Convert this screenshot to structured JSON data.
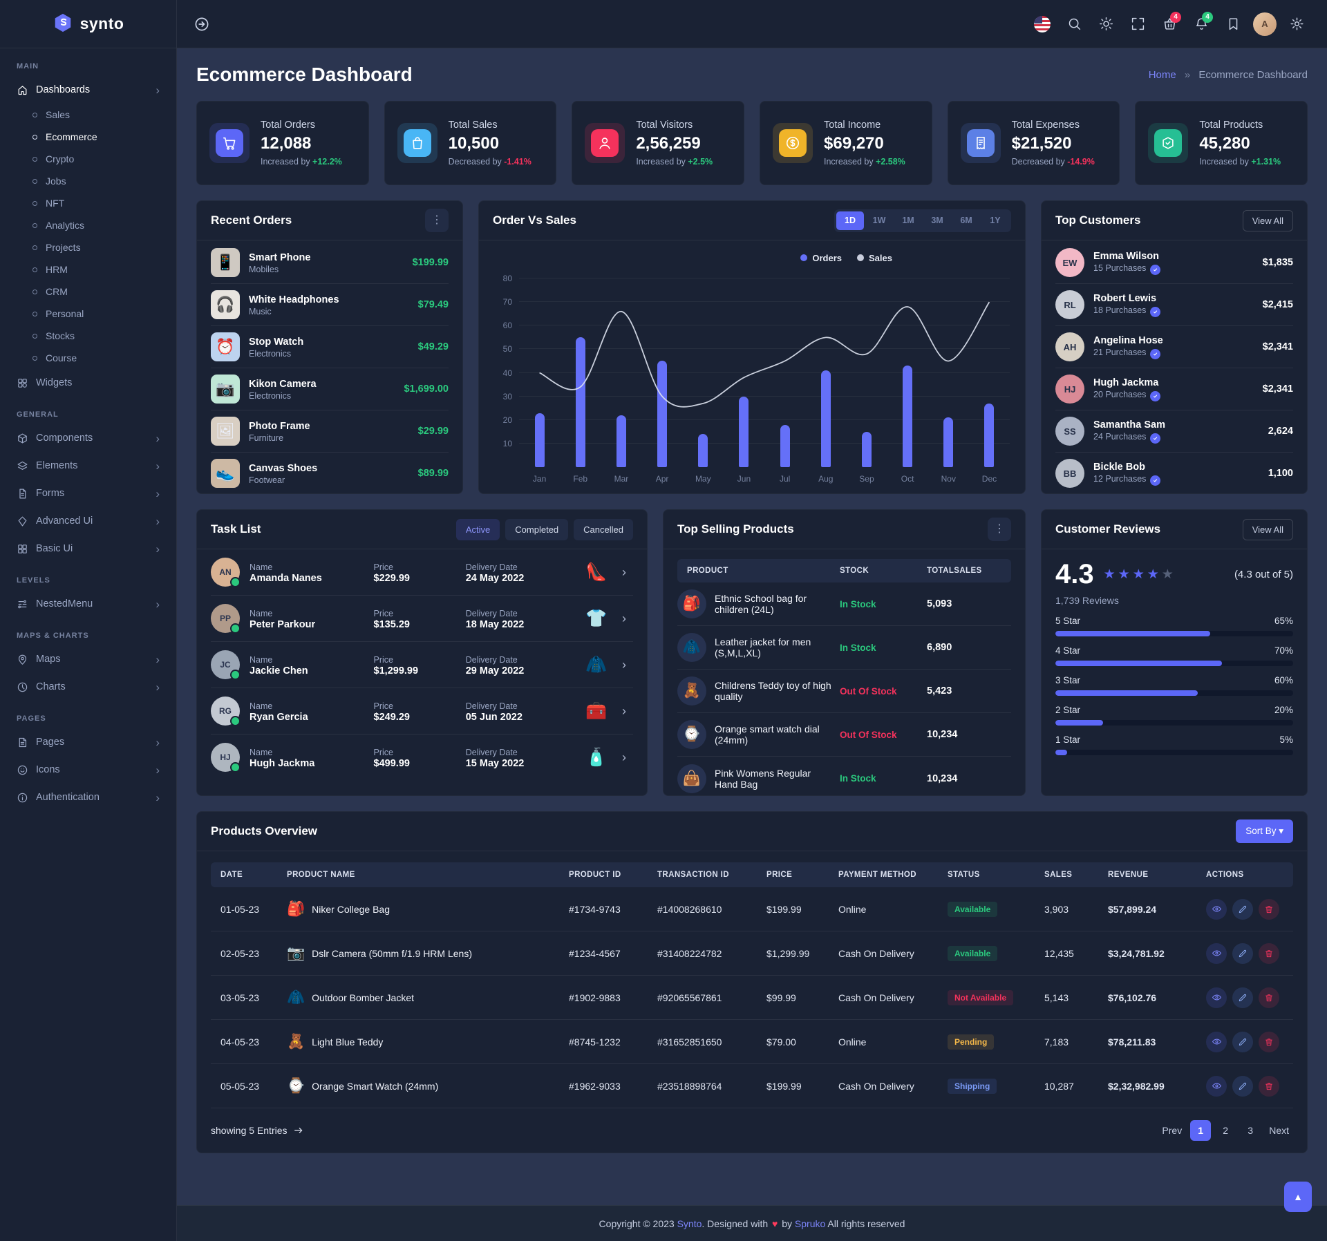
{
  "brand": {
    "name": "synto"
  },
  "page": {
    "title": "Ecommerce Dashboard",
    "breadcrumb": {
      "home": "Home",
      "separator": "»",
      "current": "Ecommerce Dashboard"
    }
  },
  "header": {
    "icons": [
      {
        "name": "language-flag",
        "type": "flag"
      },
      {
        "name": "search",
        "icon": "search"
      },
      {
        "name": "theme-toggle",
        "icon": "sun"
      },
      {
        "name": "fullscreen",
        "icon": "expand"
      },
      {
        "name": "cart",
        "icon": "basket",
        "badge": "4",
        "badge_color": "#f5325c"
      },
      {
        "name": "notifications",
        "icon": "bell",
        "badge": "4",
        "badge_color": "#2bc97e"
      },
      {
        "name": "bookmark",
        "icon": "bookmark"
      },
      {
        "name": "profile",
        "type": "avatar",
        "initials": "A"
      },
      {
        "name": "settings",
        "icon": "gear"
      }
    ]
  },
  "sidebar": {
    "sections": [
      {
        "label": "MAIN",
        "items": [
          {
            "label": "Dashboards",
            "icon": "home",
            "chevron": true,
            "active": true,
            "children": [
              {
                "label": "Sales"
              },
              {
                "label": "Ecommerce",
                "active": true
              },
              {
                "label": "Crypto"
              },
              {
                "label": "Jobs"
              },
              {
                "label": "NFT"
              },
              {
                "label": "Analytics"
              },
              {
                "label": "Projects"
              },
              {
                "label": "HRM"
              },
              {
                "label": "CRM"
              },
              {
                "label": "Personal"
              },
              {
                "label": "Stocks"
              },
              {
                "label": "Course"
              }
            ]
          },
          {
            "label": "Widgets",
            "icon": "widgets"
          }
        ]
      },
      {
        "label": "GENERAL",
        "items": [
          {
            "label": "Components",
            "icon": "components",
            "chevron": true
          },
          {
            "label": "Elements",
            "icon": "elements",
            "chevron": true
          },
          {
            "label": "Forms",
            "icon": "forms",
            "chevron": true
          },
          {
            "label": "Advanced Ui",
            "icon": "advanced",
            "chevron": true
          },
          {
            "label": "Basic Ui",
            "icon": "basic",
            "chevron": true
          }
        ]
      },
      {
        "label": "LEVELS",
        "items": [
          {
            "label": "NestedMenu",
            "icon": "nested",
            "chevron": true
          }
        ]
      },
      {
        "label": "MAPS & CHARTS",
        "items": [
          {
            "label": "Maps",
            "icon": "maps",
            "chevron": true
          },
          {
            "label": "Charts",
            "icon": "charts",
            "chevron": true
          }
        ]
      },
      {
        "label": "PAGES",
        "items": [
          {
            "label": "Pages",
            "icon": "pages",
            "chevron": true
          },
          {
            "label": "Icons",
            "icon": "iconsI",
            "chevron": true
          },
          {
            "label": "Authentication",
            "icon": "auth",
            "chevron": true
          }
        ]
      }
    ]
  },
  "stats": [
    {
      "label": "Total Orders",
      "value": "12,088",
      "trend_label": "Increased by",
      "trend_value": "+12.2%",
      "trend": "up",
      "icon": "cart",
      "color": "#5c67f7"
    },
    {
      "label": "Total Sales",
      "value": "10,500",
      "trend_label": "Decreased by",
      "trend_value": "-1.41%",
      "trend": "down",
      "icon": "bag",
      "color": "#49b6f5"
    },
    {
      "label": "Total Visitors",
      "value": "2,56,259",
      "trend_label": "Increased by",
      "trend_value": "+2.5%",
      "trend": "up",
      "icon": "user",
      "color": "#f5325c"
    },
    {
      "label": "Total Income",
      "value": "$69,270",
      "trend_label": "Increased by",
      "trend_value": "+2.58%",
      "trend": "up",
      "icon": "dollar",
      "color": "#f0b429"
    },
    {
      "label": "Total Expenses",
      "value": "$21,520",
      "trend_label": "Decreased by",
      "trend_value": "-14.9%",
      "trend": "down",
      "icon": "receipt",
      "color": "#5c80e6"
    },
    {
      "label": "Total Products",
      "value": "45,280",
      "trend_label": "Increased by",
      "trend_value": "+1.31%",
      "trend": "up",
      "icon": "box",
      "color": "#26bf94"
    }
  ],
  "recent_orders": {
    "title": "Recent Orders",
    "items": [
      {
        "name": "Smart Phone",
        "category": "Mobiles",
        "price": "$199.99",
        "emoji": "📱",
        "thumb_bg": "#cfc9c2"
      },
      {
        "name": "White Headphones",
        "category": "Music",
        "price": "$79.49",
        "emoji": "🎧",
        "thumb_bg": "#e8e4df"
      },
      {
        "name": "Stop Watch",
        "category": "Electronics",
        "price": "$49.29",
        "emoji": "⏰",
        "thumb_bg": "#bdd3ef"
      },
      {
        "name": "Kikon Camera",
        "category": "Electronics",
        "price": "$1,699.00",
        "emoji": "📷",
        "thumb_bg": "#bfe7d6"
      },
      {
        "name": "Photo Frame",
        "category": "Furniture",
        "price": "$29.99",
        "emoji": "🖼",
        "thumb_bg": "#d9cfc3"
      },
      {
        "name": "Canvas Shoes",
        "category": "Footwear",
        "price": "$89.99",
        "emoji": "👟",
        "thumb_bg": "#cdb9a4"
      }
    ]
  },
  "chart_data": {
    "type": "bar",
    "title": "Order Vs Sales",
    "categories": [
      "Jan",
      "Feb",
      "Mar",
      "Apr",
      "May",
      "Jun",
      "Jul",
      "Aug",
      "Sep",
      "Oct",
      "Nov",
      "Dec"
    ],
    "series": [
      {
        "name": "Orders",
        "type": "bar",
        "color": "#6570f8",
        "values": [
          23,
          55,
          22,
          45,
          14,
          30,
          18,
          41,
          15,
          43,
          21,
          27
        ]
      },
      {
        "name": "Sales",
        "type": "line",
        "color": "#dde2ee",
        "values": [
          40,
          34,
          66,
          30,
          27,
          38,
          45,
          55,
          48,
          68,
          45,
          70
        ]
      }
    ],
    "y_ticks": [
      10,
      20,
      30,
      40,
      50,
      60,
      70,
      80
    ],
    "ylim": [
      0,
      85
    ],
    "xlabel": "",
    "ylabel": "",
    "grid": true,
    "legend_position": "top-right",
    "ranges": [
      "1D",
      "1W",
      "1M",
      "3M",
      "6M",
      "1Y"
    ],
    "active_range": "1D"
  },
  "top_customers": {
    "title": "Top Customers",
    "action": "View All",
    "items": [
      {
        "name": "Emma Wilson",
        "purchases": "15 Purchases",
        "amount": "$1,835",
        "initials": "EW",
        "avatar_bg": "#f2b8c6"
      },
      {
        "name": "Robert Lewis",
        "purchases": "18 Purchases",
        "amount": "$2,415",
        "initials": "RL",
        "avatar_bg": "#c9cdd6"
      },
      {
        "name": "Angelina Hose",
        "purchases": "21 Purchases",
        "amount": "$2,341",
        "initials": "AH",
        "avatar_bg": "#d6cfc4"
      },
      {
        "name": "Hugh Jackma",
        "purchases": "20 Purchases",
        "amount": "$2,341",
        "initials": "HJ",
        "avatar_bg": "#d98a96"
      },
      {
        "name": "Samantha Sam",
        "purchases": "24 Purchases",
        "amount": "2,624",
        "initials": "SS",
        "avatar_bg": "#aab2c4"
      },
      {
        "name": "Bickle Bob",
        "purchases": "12 Purchases",
        "amount": "1,100",
        "initials": "BB",
        "avatar_bg": "#b8bec9"
      }
    ]
  },
  "task_list": {
    "title": "Task List",
    "tabs": [
      {
        "label": "Active",
        "active": true
      },
      {
        "label": "Completed",
        "active": false
      },
      {
        "label": "Cancelled",
        "active": false
      }
    ],
    "field_labels": {
      "name": "Name",
      "price": "Price",
      "date": "Delivery Date"
    },
    "items": [
      {
        "name": "Amanda Nanes",
        "price": "$229.99",
        "date": "24 May 2022",
        "initials": "AN",
        "avatar_bg": "#d8b293",
        "emoji": "👠"
      },
      {
        "name": "Peter Parkour",
        "price": "$135.29",
        "date": "18 May 2022",
        "initials": "PP",
        "avatar_bg": "#b09a8a",
        "emoji": "👕"
      },
      {
        "name": "Jackie Chen",
        "price": "$1,299.99",
        "date": "29 May 2022",
        "initials": "JC",
        "avatar_bg": "#9aa5b4",
        "emoji": "🧥"
      },
      {
        "name": "Ryan Gercia",
        "price": "$249.29",
        "date": "05 Jun 2022",
        "initials": "RG",
        "avatar_bg": "#c3c9d2",
        "emoji": "🧰"
      },
      {
        "name": "Hugh Jackma",
        "price": "$499.99",
        "date": "15 May 2022",
        "initials": "HJ",
        "avatar_bg": "#aeb6bf",
        "emoji": "🧴"
      }
    ]
  },
  "top_selling": {
    "title": "Top Selling Products",
    "columns": [
      "PRODUCT",
      "STOCK",
      "TOTALSALES"
    ],
    "items": [
      {
        "name": "Ethnic School bag for children (24L)",
        "stock": "In Stock",
        "stock_type": "success",
        "sales": "5,093",
        "emoji": "🎒"
      },
      {
        "name": "Leather jacket for men (S,M,L,XL)",
        "stock": "In Stock",
        "stock_type": "success",
        "sales": "6,890",
        "emoji": "🧥"
      },
      {
        "name": "Childrens Teddy toy of high quality",
        "stock": "Out Of Stock",
        "stock_type": "danger",
        "sales": "5,423",
        "emoji": "🧸"
      },
      {
        "name": "Orange smart watch dial (24mm)",
        "stock": "Out Of Stock",
        "stock_type": "danger",
        "sales": "10,234",
        "emoji": "⌚"
      },
      {
        "name": "Pink Womens Regular Hand Bag",
        "stock": "In Stock",
        "stock_type": "success",
        "sales": "10,234",
        "emoji": "👜"
      }
    ]
  },
  "reviews": {
    "title": "Customer Reviews",
    "action": "View All",
    "score": "4.3",
    "score_note": "(4.3 out of 5)",
    "stars_filled": 4,
    "stars_total": 5,
    "reviews_count": "1,739 Reviews",
    "bars": [
      {
        "label": "5 Star",
        "pct": 65
      },
      {
        "label": "4 Star",
        "pct": 70
      },
      {
        "label": "3 Star",
        "pct": 60
      },
      {
        "label": "2 Star",
        "pct": 20
      },
      {
        "label": "1 Star",
        "pct": 5
      }
    ]
  },
  "products_overview": {
    "title": "Products Overview",
    "sort_label": "Sort By",
    "columns": [
      "DATE",
      "PRODUCT NAME",
      "PRODUCT ID",
      "TRANSACTION ID",
      "PRICE",
      "PAYMENT METHOD",
      "STATUS",
      "SALES",
      "REVENUE",
      "ACTIONS"
    ],
    "rows": [
      {
        "date": "01-05-23",
        "name": "Niker College Bag",
        "emoji": "🎒",
        "product_id": "#1734-9743",
        "transaction_id": "#14008268610",
        "price": "$199.99",
        "payment": "Online",
        "status": "Available",
        "status_type": "success",
        "sales": "3,903",
        "revenue": "$57,899.24"
      },
      {
        "date": "02-05-23",
        "name": "Dslr Camera (50mm f/1.9 HRM Lens)",
        "emoji": "📷",
        "product_id": "#1234-4567",
        "transaction_id": "#31408224782",
        "price": "$1,299.99",
        "payment": "Cash On Delivery",
        "status": "Available",
        "status_type": "success",
        "sales": "12,435",
        "revenue": "$3,24,781.92"
      },
      {
        "date": "03-05-23",
        "name": "Outdoor Bomber Jacket",
        "emoji": "🧥",
        "product_id": "#1902-9883",
        "transaction_id": "#92065567861",
        "price": "$99.99",
        "payment": "Cash On Delivery",
        "status": "Not Available",
        "status_type": "danger",
        "sales": "5,143",
        "revenue": "$76,102.76"
      },
      {
        "date": "04-05-23",
        "name": "Light Blue Teddy",
        "emoji": "🧸",
        "product_id": "#8745-1232",
        "transaction_id": "#31652851650",
        "price": "$79.00",
        "payment": "Online",
        "status": "Pending",
        "status_type": "warning",
        "sales": "7,183",
        "revenue": "$78,211.83"
      },
      {
        "date": "05-05-23",
        "name": "Orange Smart Watch (24mm)",
        "emoji": "⌚",
        "product_id": "#1962-9033",
        "transaction_id": "#23518898764",
        "price": "$199.99",
        "payment": "Cash On Delivery",
        "status": "Shipping",
        "status_type": "info",
        "sales": "10,287",
        "revenue": "$2,32,982.99"
      }
    ],
    "footer": {
      "showing": "showing 5 Entries",
      "pagination": {
        "prev": "Prev",
        "pages": [
          "1",
          "2",
          "3"
        ],
        "active": "1",
        "next": "Next"
      }
    }
  },
  "footer": {
    "parts": [
      "Copyright © 2023 ",
      "Synto",
      ". Designed with ",
      "♥",
      " by ",
      "Spruko",
      " All rights reserved"
    ]
  }
}
